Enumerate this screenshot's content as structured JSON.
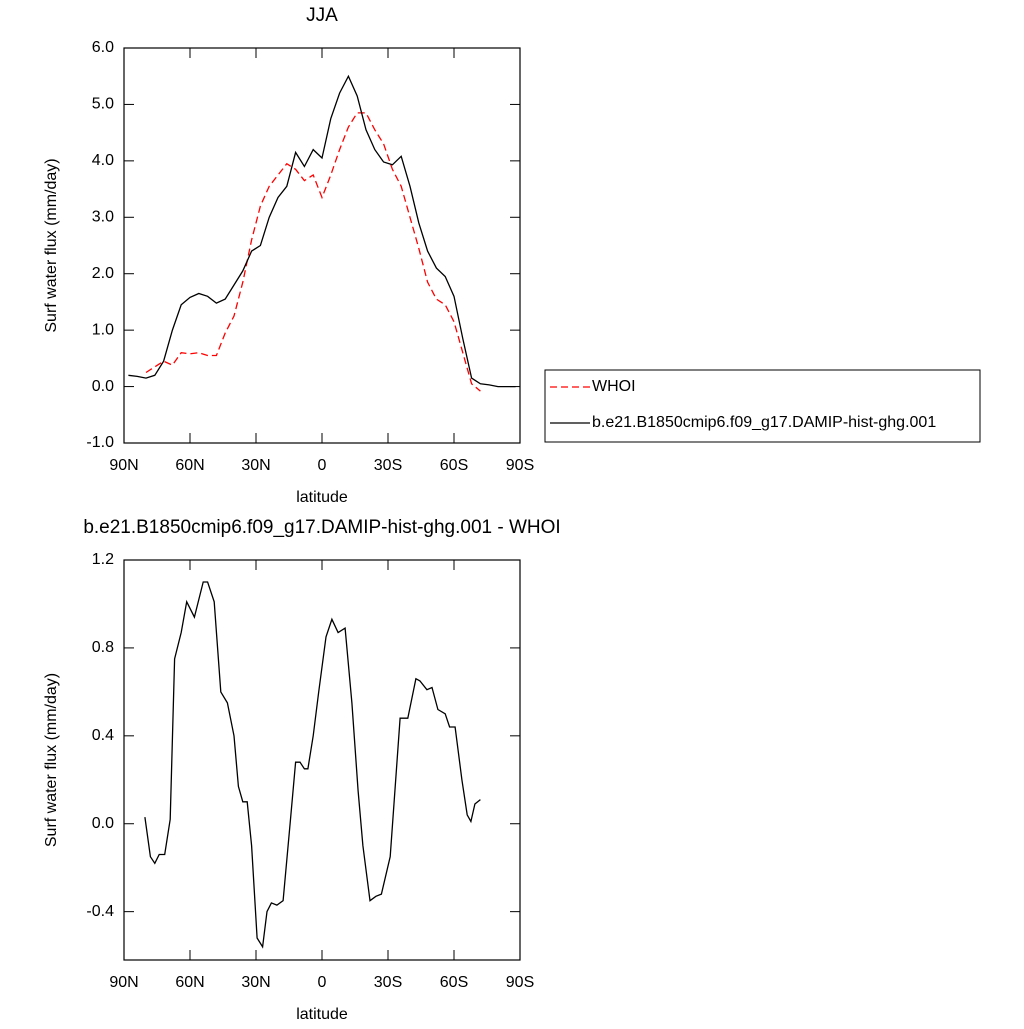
{
  "chart_data": [
    {
      "type": "line",
      "title": "JJA",
      "xlabel": "latitude",
      "ylabel": "Surf water flux (mm/day)",
      "x": [
        88,
        84,
        80,
        76,
        72,
        68,
        64,
        60,
        56,
        52,
        48,
        44,
        40,
        36,
        32,
        28,
        24,
        20,
        16,
        12,
        8,
        4,
        0,
        -4,
        -8,
        -12,
        -16,
        -20,
        -24,
        -28,
        -32,
        -36,
        -40,
        -44,
        -48,
        -52,
        -56,
        -60,
        -64,
        -68,
        -72,
        -76,
        -80,
        -84,
        -88
      ],
      "series": [
        {
          "name": "WHOI",
          "color": "#ff0000",
          "dash": true,
          "values": [
            null,
            null,
            0.25,
            0.35,
            0.45,
            0.38,
            0.6,
            0.58,
            0.6,
            0.55,
            0.55,
            0.95,
            1.25,
            1.85,
            2.6,
            3.2,
            3.55,
            3.75,
            3.95,
            3.85,
            3.65,
            3.75,
            3.35,
            3.75,
            4.2,
            4.6,
            4.85,
            4.85,
            4.55,
            4.3,
            3.85,
            3.55,
            3.0,
            2.45,
            1.85,
            1.55,
            1.45,
            1.15,
            0.6,
            0.05,
            -0.08,
            null,
            null,
            null,
            null
          ]
        },
        {
          "name": "b.e21.B1850cmip6.f09_g17.DAMIP-hist-ghg.001",
          "color": "#000000",
          "dash": false,
          "values": [
            0.2,
            0.18,
            0.15,
            0.2,
            0.45,
            1.0,
            1.45,
            1.58,
            1.65,
            1.6,
            1.48,
            1.55,
            1.8,
            2.05,
            2.4,
            2.5,
            3.0,
            3.35,
            3.55,
            4.15,
            3.9,
            4.2,
            4.05,
            4.75,
            5.2,
            5.5,
            5.15,
            4.55,
            4.2,
            3.98,
            3.93,
            4.08,
            3.55,
            2.9,
            2.4,
            2.1,
            1.95,
            1.6,
            0.85,
            0.15,
            0.05,
            0.03,
            0.0,
            0.0,
            0.0
          ]
        }
      ],
      "xlim": [
        90,
        -90
      ],
      "xticks": [
        {
          "value": 90,
          "label": "90N"
        },
        {
          "value": 60,
          "label": "60N"
        },
        {
          "value": 30,
          "label": "30N"
        },
        0,
        {
          "value": -30,
          "label": "30S"
        },
        {
          "value": -60,
          "label": "60S"
        },
        {
          "value": -90,
          "label": "90S"
        }
      ],
      "ylim": [
        -1,
        6
      ],
      "yticks": [
        {
          "value": -1,
          "label": "-1.0"
        },
        {
          "value": 0,
          "label": "0.0"
        },
        {
          "value": 1,
          "label": "1.0"
        },
        {
          "value": 2,
          "label": "2.0"
        },
        {
          "value": 3,
          "label": "3.0"
        },
        {
          "value": 4,
          "label": "4.0"
        },
        {
          "value": 5,
          "label": "5.0"
        },
        {
          "value": 6,
          "label": "6.0"
        }
      ],
      "legend": "right",
      "grid": false
    },
    {
      "type": "line",
      "title": "b.e21.B1850cmip6.f09_g17.DAMIP-hist-ghg.001 - WHOI",
      "xlabel": "latitude",
      "ylabel": "Surf water flux (mm/day)",
      "x": [
        80.5,
        78,
        76,
        74,
        71.5,
        69,
        67,
        64,
        61.5,
        58,
        54,
        52,
        49,
        46,
        43,
        40,
        38,
        36,
        34,
        32,
        29.5,
        27,
        25,
        23,
        20.5,
        17.7,
        14.5,
        12,
        10,
        8,
        6.4,
        4,
        1.5,
        -1.8,
        -4.5,
        -7.3,
        -10.5,
        -13.6,
        -16.4,
        -18.6,
        -21.8,
        -24.5,
        -27,
        -31,
        -35.5,
        -39,
        -42.7,
        -44.5,
        -47.7,
        -50,
        -52.7,
        -56,
        -58,
        -60.5,
        -63.6,
        -66,
        -67.7,
        -69.5,
        -72
      ],
      "values": [
        0.03,
        -0.15,
        -0.18,
        -0.14,
        -0.14,
        0.02,
        0.75,
        0.87,
        1.01,
        0.94,
        1.1,
        1.1,
        1.01,
        0.6,
        0.55,
        0.4,
        0.17,
        0.1,
        0.1,
        -0.1,
        -0.52,
        -0.56,
        -0.4,
        -0.36,
        -0.37,
        -0.35,
        0.0,
        0.28,
        0.28,
        0.25,
        0.25,
        0.4,
        0.6,
        0.85,
        0.93,
        0.87,
        0.89,
        0.55,
        0.15,
        -0.1,
        -0.35,
        -0.33,
        -0.32,
        -0.15,
        0.48,
        0.48,
        0.66,
        0.65,
        0.61,
        0.62,
        0.52,
        0.5,
        0.44,
        0.44,
        0.2,
        0.04,
        0.01,
        0.09,
        0.11
      ],
      "color": "#000000",
      "xlim": [
        90,
        -90
      ],
      "xticks": [
        {
          "value": 90,
          "label": "90N"
        },
        {
          "value": 60,
          "label": "60N"
        },
        {
          "value": 30,
          "label": "30N"
        },
        0,
        {
          "value": -30,
          "label": "30S"
        },
        {
          "value": -60,
          "label": "60S"
        },
        {
          "value": -90,
          "label": "90S"
        }
      ],
      "ylim": [
        -0.62,
        1.2
      ],
      "yticks": [
        -0.4,
        {
          "value": 0,
          "label": "0.0"
        },
        0.4,
        0.8,
        1.2
      ],
      "grid": false
    }
  ]
}
